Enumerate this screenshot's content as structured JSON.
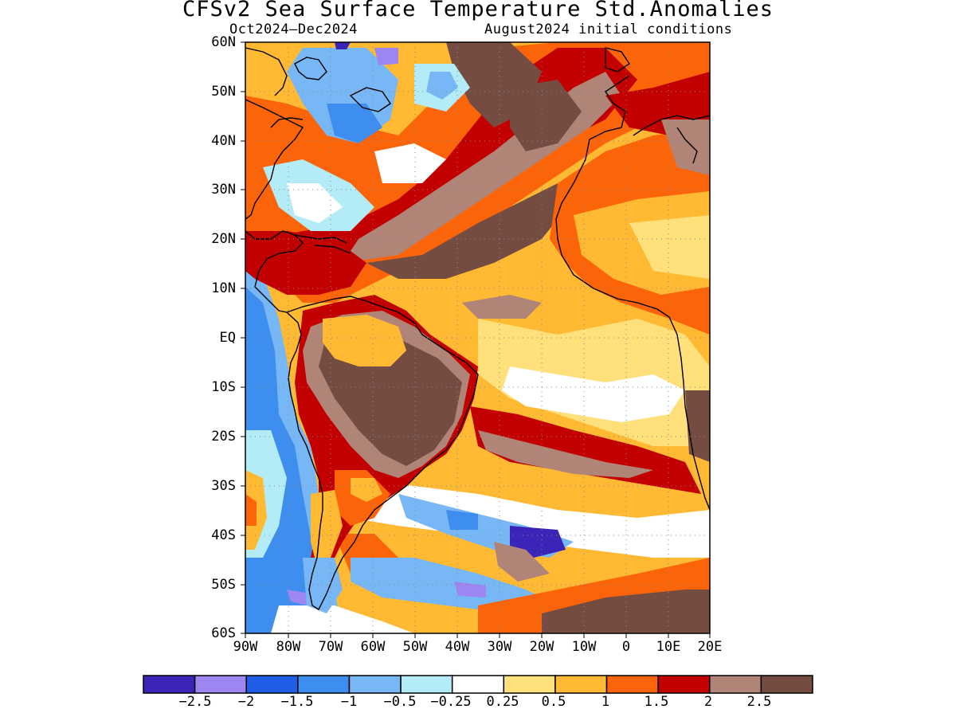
{
  "title": "CFSv2 Sea Surface Temperature Std.Anomalies",
  "subtitle_left": "Oct2024–Dec2024",
  "subtitle_right": "August2024 initial conditions",
  "lat_labels": [
    "60N",
    "50N",
    "40N",
    "30N",
    "20N",
    "10N",
    "EQ",
    "10S",
    "20S",
    "30S",
    "40S",
    "50S",
    "60S"
  ],
  "lon_labels": [
    "90W",
    "80W",
    "70W",
    "60W",
    "50W",
    "40W",
    "30W",
    "20W",
    "10W",
    "0",
    "10E",
    "20E"
  ],
  "colorbar": {
    "colors": [
      "#3b24b8",
      "#9d86f2",
      "#1f5de6",
      "#3d8eee",
      "#78b7f5",
      "#b3ecf7",
      "#ffffff",
      "#ffe07a",
      "#ffb933",
      "#fc640a",
      "#c20000",
      "#b08577",
      "#744c42"
    ],
    "labels": [
      "−2.5",
      "−2",
      "−1.5",
      "−1",
      "−0.5",
      "−0.25",
      "0.25",
      "0.5",
      "1",
      "1.5",
      "2",
      "2.5"
    ]
  }
}
